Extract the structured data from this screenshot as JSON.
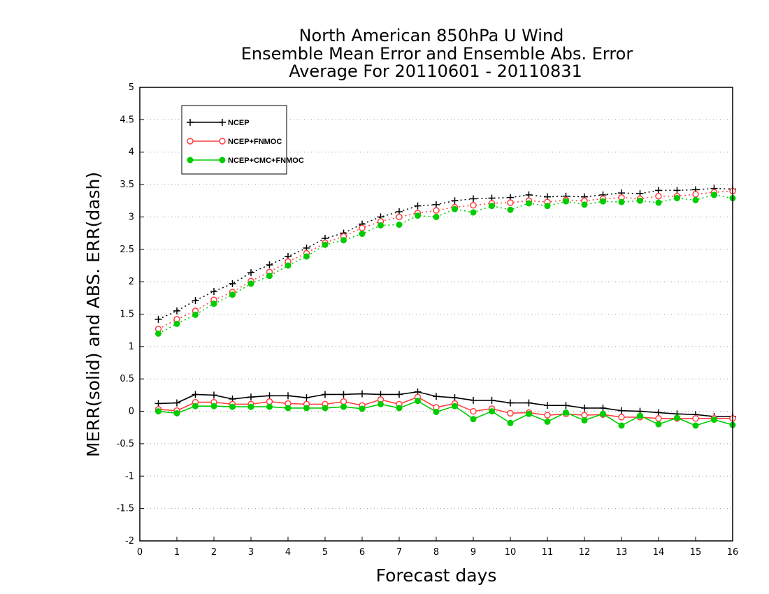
{
  "chart_data": {
    "type": "line",
    "title": [
      "North American 850hPa U Wind",
      "Ensemble Mean Error and Ensemble Abs. Error",
      "Average For 20110601 - 20110831"
    ],
    "xlabel": "Forecast days",
    "ylabel": "MERR(solid) and ABS. ERR(dash)",
    "xlim": [
      0,
      16
    ],
    "ylim": [
      -2,
      5
    ],
    "xticks": [
      "0",
      "1",
      "2",
      "3",
      "4",
      "5",
      "6",
      "7",
      "8",
      "9",
      "10",
      "11",
      "12",
      "13",
      "14",
      "15",
      "16"
    ],
    "yticks": [
      "5",
      "4.5",
      "4",
      "3.5",
      "3",
      "2.5",
      "2",
      "1.5",
      "1",
      "0.5",
      "0",
      "-0.5",
      "-1",
      "-1.5",
      "-2"
    ],
    "grid": "horizontal dotted",
    "legend_position": "top-left",
    "x": [
      0.5,
      1,
      1.5,
      2,
      2.5,
      3,
      3.5,
      4,
      4.5,
      5,
      5.5,
      6,
      6.5,
      7,
      7.5,
      8,
      8.5,
      9,
      9.5,
      10,
      10.5,
      11,
      11.5,
      12,
      12.5,
      13,
      13.5,
      14,
      14.5,
      15,
      15.5,
      16
    ],
    "series": [
      {
        "name": "NCEP",
        "color": "#000000",
        "marker": "plus",
        "mean_error": [
          0.12,
          0.13,
          0.26,
          0.25,
          0.19,
          0.22,
          0.24,
          0.24,
          0.21,
          0.26,
          0.26,
          0.27,
          0.26,
          0.26,
          0.3,
          0.23,
          0.21,
          0.17,
          0.17,
          0.13,
          0.13,
          0.09,
          0.09,
          0.05,
          0.05,
          0.01,
          0.0,
          -0.02,
          -0.04,
          -0.05,
          -0.08,
          -0.08
        ],
        "abs_error": [
          1.42,
          1.55,
          1.71,
          1.85,
          1.97,
          2.14,
          2.26,
          2.39,
          2.52,
          2.67,
          2.75,
          2.89,
          3.0,
          3.08,
          3.17,
          3.19,
          3.25,
          3.28,
          3.29,
          3.3,
          3.34,
          3.31,
          3.32,
          3.31,
          3.34,
          3.37,
          3.36,
          3.41,
          3.41,
          3.42,
          3.44,
          3.43
        ]
      },
      {
        "name": "NCEP+FNMOC",
        "color": "#ff4040",
        "marker": "open-circle",
        "mean_error": [
          0.03,
          0.01,
          0.14,
          0.14,
          0.11,
          0.11,
          0.15,
          0.12,
          0.11,
          0.11,
          0.15,
          0.09,
          0.18,
          0.11,
          0.22,
          0.06,
          0.12,
          0.0,
          0.04,
          -0.03,
          -0.02,
          -0.06,
          -0.04,
          -0.06,
          -0.05,
          -0.09,
          -0.09,
          -0.11,
          -0.11,
          -0.11,
          -0.11,
          -0.11
        ],
        "abs_error": [
          1.27,
          1.42,
          1.55,
          1.72,
          1.84,
          2.01,
          2.15,
          2.31,
          2.44,
          2.6,
          2.7,
          2.83,
          2.93,
          3.0,
          3.06,
          3.1,
          3.15,
          3.18,
          3.21,
          3.22,
          3.25,
          3.23,
          3.26,
          3.25,
          3.28,
          3.3,
          3.28,
          3.32,
          3.32,
          3.35,
          3.38,
          3.4
        ]
      },
      {
        "name": "NCEP+CMC+FNMOC",
        "color": "#00cc00",
        "marker": "filled-circle",
        "mean_error": [
          0.0,
          -0.03,
          0.08,
          0.08,
          0.07,
          0.07,
          0.07,
          0.05,
          0.05,
          0.05,
          0.07,
          0.04,
          0.11,
          0.05,
          0.16,
          -0.01,
          0.08,
          -0.12,
          0.0,
          -0.18,
          -0.04,
          -0.16,
          -0.02,
          -0.14,
          -0.04,
          -0.22,
          -0.07,
          -0.2,
          -0.1,
          -0.22,
          -0.13,
          -0.21
        ],
        "abs_error": [
          1.2,
          1.35,
          1.49,
          1.66,
          1.8,
          1.97,
          2.09,
          2.25,
          2.39,
          2.57,
          2.64,
          2.74,
          2.87,
          2.88,
          3.02,
          3.0,
          3.12,
          3.07,
          3.17,
          3.11,
          3.21,
          3.17,
          3.24,
          3.19,
          3.24,
          3.23,
          3.25,
          3.22,
          3.29,
          3.26,
          3.34,
          3.29
        ]
      }
    ]
  }
}
